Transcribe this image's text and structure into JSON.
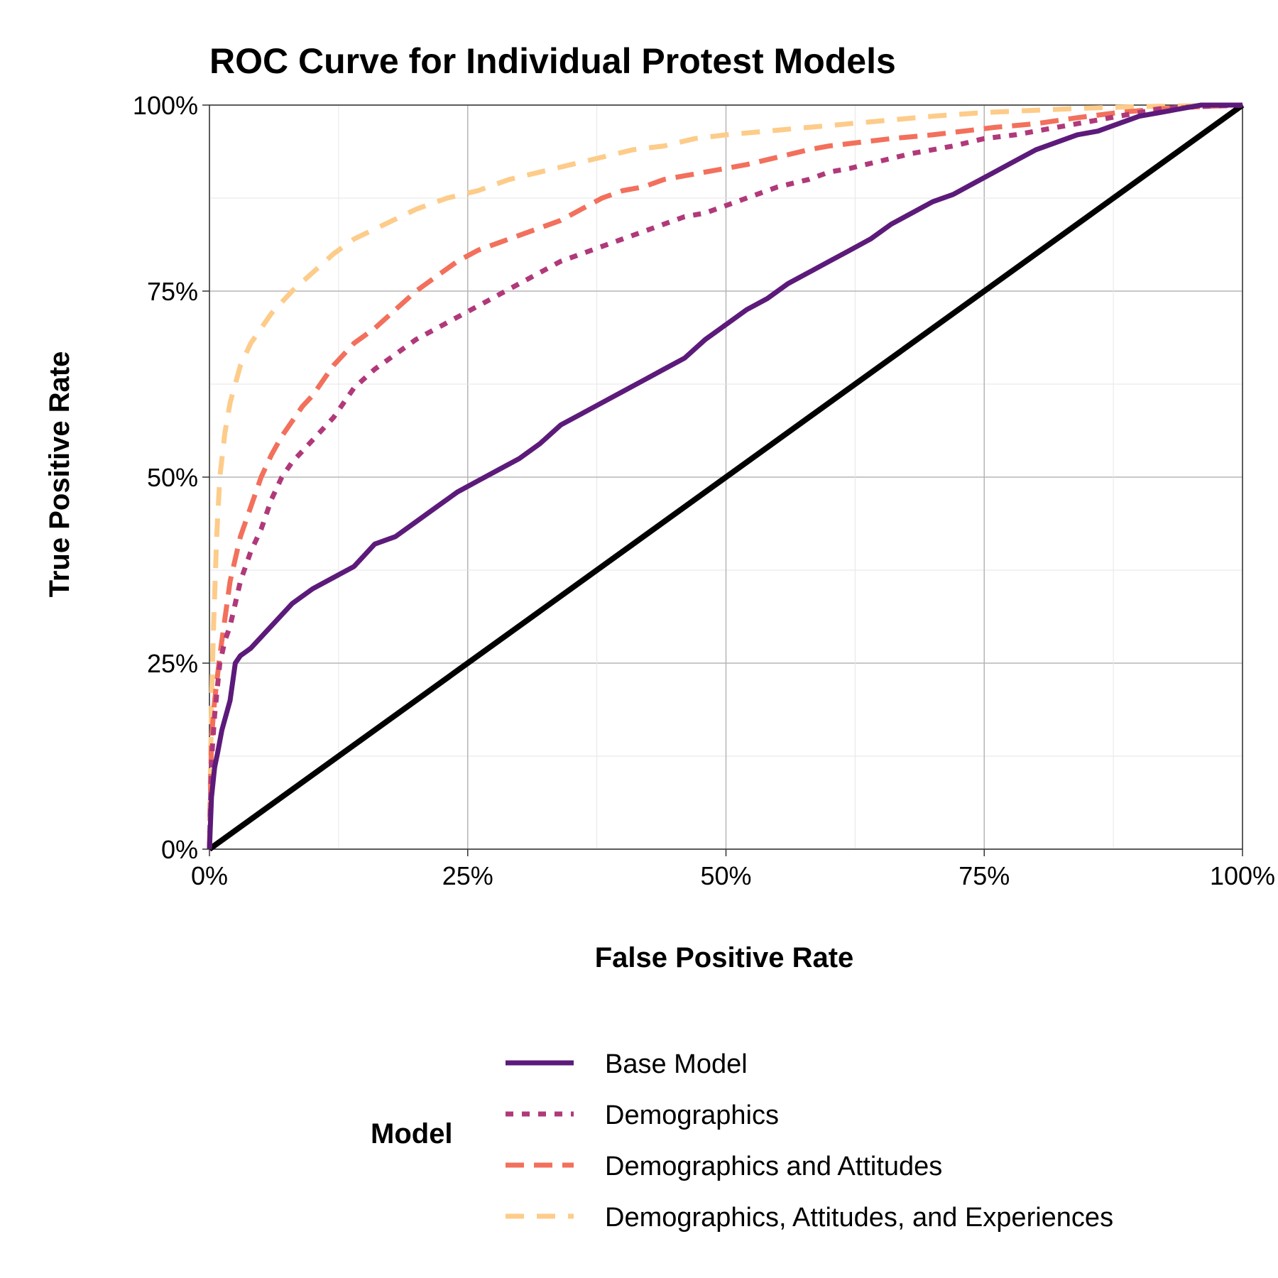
{
  "chart_data": {
    "type": "line",
    "title": "ROC Curve for Individual Protest Models",
    "xlabel": "False Positive Rate",
    "ylabel": "True Positive Rate",
    "xlim": [
      0,
      1
    ],
    "ylim": [
      0,
      1
    ],
    "x_ticks": [
      "0%",
      "25%",
      "50%",
      "75%",
      "100%"
    ],
    "y_ticks": [
      "0%",
      "25%",
      "50%",
      "75%",
      "100%"
    ],
    "grid": true,
    "legend_title": "Model",
    "legend_position": "bottom",
    "series": [
      {
        "name": "Base Model",
        "color": "#5c1a7a",
        "dash": "solid",
        "x": [
          0,
          0.002,
          0.005,
          0.008,
          0.012,
          0.016,
          0.02,
          0.025,
          0.03,
          0.035,
          0.04,
          0.05,
          0.06,
          0.07,
          0.08,
          0.09,
          0.1,
          0.12,
          0.14,
          0.16,
          0.18,
          0.2,
          0.22,
          0.24,
          0.26,
          0.28,
          0.3,
          0.32,
          0.34,
          0.36,
          0.38,
          0.4,
          0.42,
          0.44,
          0.46,
          0.48,
          0.5,
          0.52,
          0.54,
          0.56,
          0.58,
          0.6,
          0.62,
          0.64,
          0.66,
          0.68,
          0.7,
          0.72,
          0.74,
          0.76,
          0.78,
          0.8,
          0.82,
          0.84,
          0.86,
          0.88,
          0.9,
          0.92,
          0.94,
          0.96,
          0.98,
          1.0
        ],
        "y": [
          0,
          0.07,
          0.11,
          0.13,
          0.16,
          0.18,
          0.2,
          0.25,
          0.26,
          0.265,
          0.27,
          0.285,
          0.3,
          0.315,
          0.33,
          0.34,
          0.35,
          0.365,
          0.38,
          0.41,
          0.42,
          0.44,
          0.46,
          0.48,
          0.495,
          0.51,
          0.525,
          0.545,
          0.57,
          0.585,
          0.6,
          0.615,
          0.63,
          0.645,
          0.66,
          0.685,
          0.705,
          0.725,
          0.74,
          0.76,
          0.775,
          0.79,
          0.805,
          0.82,
          0.84,
          0.855,
          0.87,
          0.88,
          0.895,
          0.91,
          0.925,
          0.94,
          0.95,
          0.96,
          0.965,
          0.975,
          0.985,
          0.99,
          0.995,
          1.0,
          1.0,
          1.0
        ]
      },
      {
        "name": "Demographics",
        "color": "#b0397a",
        "dash": "dotted",
        "x": [
          0,
          0.002,
          0.005,
          0.01,
          0.015,
          0.02,
          0.03,
          0.04,
          0.05,
          0.06,
          0.07,
          0.08,
          0.1,
          0.12,
          0.14,
          0.16,
          0.18,
          0.2,
          0.22,
          0.24,
          0.26,
          0.28,
          0.3,
          0.32,
          0.34,
          0.36,
          0.38,
          0.4,
          0.42,
          0.44,
          0.46,
          0.48,
          0.5,
          0.52,
          0.55,
          0.58,
          0.6,
          0.62,
          0.65,
          0.68,
          0.7,
          0.72,
          0.75,
          0.78,
          0.8,
          0.82,
          0.84,
          0.86,
          0.88,
          0.9,
          0.92,
          0.94,
          0.96,
          0.98,
          1.0
        ],
        "y": [
          0,
          0.12,
          0.18,
          0.25,
          0.28,
          0.3,
          0.36,
          0.4,
          0.43,
          0.47,
          0.5,
          0.52,
          0.55,
          0.58,
          0.62,
          0.645,
          0.665,
          0.685,
          0.7,
          0.715,
          0.73,
          0.745,
          0.76,
          0.775,
          0.79,
          0.8,
          0.81,
          0.82,
          0.83,
          0.84,
          0.85,
          0.855,
          0.865,
          0.875,
          0.89,
          0.9,
          0.91,
          0.915,
          0.925,
          0.935,
          0.94,
          0.945,
          0.955,
          0.96,
          0.965,
          0.97,
          0.975,
          0.98,
          0.985,
          0.99,
          0.995,
          0.997,
          0.998,
          0.999,
          1.0
        ]
      },
      {
        "name": "Demographics and Attitudes",
        "color": "#f2705c",
        "dash": "dashed",
        "x": [
          0,
          0.002,
          0.005,
          0.01,
          0.015,
          0.02,
          0.03,
          0.04,
          0.05,
          0.06,
          0.07,
          0.08,
          0.09,
          0.1,
          0.12,
          0.14,
          0.16,
          0.18,
          0.2,
          0.22,
          0.24,
          0.26,
          0.28,
          0.3,
          0.32,
          0.34,
          0.36,
          0.38,
          0.4,
          0.42,
          0.44,
          0.46,
          0.48,
          0.5,
          0.52,
          0.55,
          0.58,
          0.6,
          0.63,
          0.66,
          0.7,
          0.73,
          0.76,
          0.8,
          0.84,
          0.88,
          0.92,
          0.96,
          1.0
        ],
        "y": [
          0,
          0.15,
          0.2,
          0.26,
          0.31,
          0.36,
          0.42,
          0.46,
          0.5,
          0.53,
          0.555,
          0.575,
          0.595,
          0.61,
          0.65,
          0.68,
          0.7,
          0.725,
          0.75,
          0.77,
          0.79,
          0.805,
          0.815,
          0.825,
          0.835,
          0.845,
          0.86,
          0.875,
          0.885,
          0.89,
          0.9,
          0.905,
          0.91,
          0.915,
          0.92,
          0.93,
          0.94,
          0.945,
          0.95,
          0.955,
          0.96,
          0.965,
          0.97,
          0.975,
          0.983,
          0.99,
          0.995,
          0.998,
          1.0
        ]
      },
      {
        "name": "Demographics, Attitudes, and Experiences",
        "color": "#fdcc8a",
        "dash": "longdash",
        "x": [
          0,
          0.002,
          0.004,
          0.007,
          0.01,
          0.015,
          0.02,
          0.03,
          0.04,
          0.05,
          0.06,
          0.07,
          0.08,
          0.1,
          0.12,
          0.14,
          0.17,
          0.2,
          0.23,
          0.26,
          0.29,
          0.32,
          0.35,
          0.38,
          0.41,
          0.44,
          0.47,
          0.5,
          0.54,
          0.58,
          0.62,
          0.66,
          0.7,
          0.75,
          0.8,
          0.85,
          0.9,
          0.95,
          1.0
        ],
        "y": [
          0,
          0.2,
          0.3,
          0.42,
          0.5,
          0.56,
          0.6,
          0.65,
          0.68,
          0.7,
          0.72,
          0.735,
          0.75,
          0.775,
          0.8,
          0.82,
          0.84,
          0.86,
          0.875,
          0.885,
          0.9,
          0.91,
          0.92,
          0.93,
          0.94,
          0.945,
          0.955,
          0.96,
          0.965,
          0.97,
          0.975,
          0.98,
          0.985,
          0.99,
          0.993,
          0.996,
          0.998,
          0.999,
          1.0
        ]
      },
      {
        "name": "",
        "color": "#000000",
        "dash": "solid",
        "x": [
          0,
          1
        ],
        "y": [
          0,
          1
        ]
      }
    ]
  }
}
